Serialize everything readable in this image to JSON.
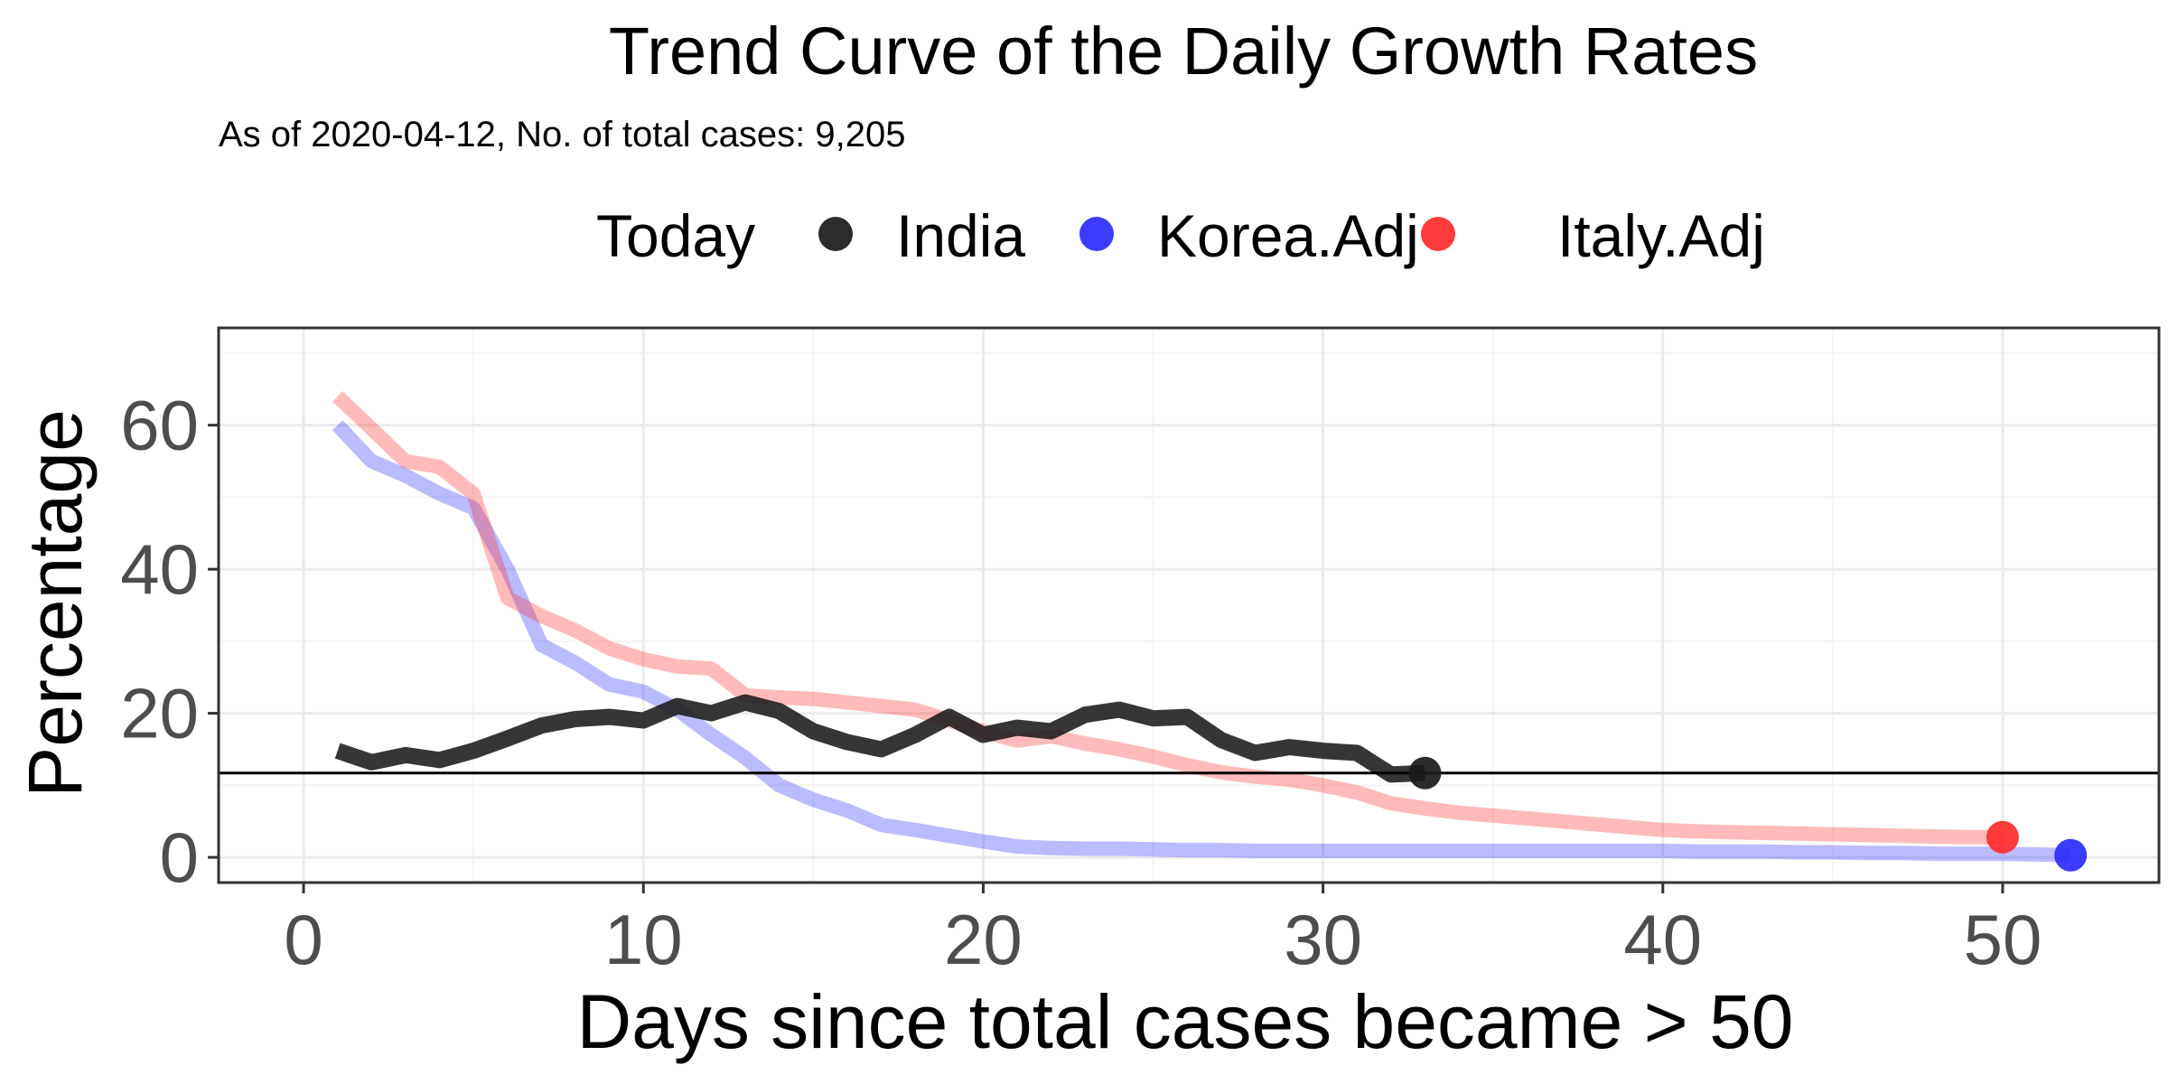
{
  "chart_data": {
    "type": "line",
    "title": "Trend Curve of the Daily Growth Rates",
    "subtitle": "As of 2020-04-12, No. of total cases: 9,205",
    "xlabel": "Days since total cases became > 50",
    "ylabel": "Percentage",
    "xlim": [
      -2.5,
      54.6
    ],
    "ylim": [
      -3.5,
      73.5
    ],
    "x_ticks": [
      0,
      10,
      20,
      30,
      40,
      50
    ],
    "y_ticks": [
      0,
      20,
      40,
      60
    ],
    "grid": true,
    "legend": {
      "title": "Today",
      "position": "top",
      "entries": [
        "India",
        "Korea.Adj",
        "Italy.Adj"
      ]
    },
    "reference_line": {
      "y": 11.7,
      "color": "#000000"
    },
    "series": [
      {
        "name": "Korea.Adj",
        "color": "#2b2bff",
        "x": [
          1,
          2,
          3,
          4,
          5,
          6,
          7,
          8,
          9,
          10,
          11,
          12,
          13,
          14,
          15,
          16,
          17,
          18,
          19,
          20,
          21,
          22,
          23,
          24,
          25,
          26,
          27,
          28,
          29,
          30,
          31,
          32,
          33,
          34,
          35,
          36,
          37,
          38,
          39,
          40,
          41,
          42,
          43,
          44,
          45,
          46,
          47,
          48,
          49,
          50,
          51,
          52
        ],
        "y": [
          60.0,
          55.0,
          53.0,
          50.5,
          48.5,
          40.0,
          29.5,
          27.0,
          24.0,
          23.0,
          20.5,
          17.0,
          13.8,
          10.0,
          8.0,
          6.5,
          4.5,
          3.8,
          3.0,
          2.2,
          1.5,
          1.3,
          1.2,
          1.2,
          1.1,
          1.0,
          1.0,
          0.9,
          0.9,
          0.9,
          0.9,
          0.9,
          0.9,
          0.9,
          0.9,
          0.9,
          0.9,
          0.9,
          0.9,
          0.9,
          0.8,
          0.8,
          0.8,
          0.7,
          0.7,
          0.6,
          0.6,
          0.5,
          0.5,
          0.5,
          0.4,
          0.3
        ],
        "today": {
          "x": 52,
          "y": 0.3
        }
      },
      {
        "name": "Italy.Adj",
        "color": "#ff2b2b",
        "x": [
          1,
          2,
          3,
          4,
          5,
          6,
          7,
          8,
          9,
          10,
          11,
          12,
          13,
          14,
          15,
          16,
          17,
          18,
          19,
          20,
          21,
          22,
          23,
          24,
          25,
          26,
          27,
          28,
          29,
          30,
          31,
          32,
          33,
          34,
          35,
          36,
          37,
          38,
          39,
          40,
          41,
          42,
          43,
          44,
          45,
          46,
          47,
          48,
          49,
          50
        ],
        "y": [
          64.0,
          59.5,
          55.0,
          54.2,
          50.5,
          36.0,
          33.5,
          31.5,
          29.0,
          27.5,
          26.5,
          26.2,
          22.5,
          22.2,
          22.0,
          21.5,
          21.0,
          20.5,
          19.0,
          17.5,
          16.2,
          16.8,
          15.8,
          15.0,
          14.0,
          12.8,
          11.8,
          11.2,
          10.8,
          10.0,
          9.0,
          7.5,
          6.8,
          6.2,
          5.8,
          5.4,
          5.0,
          4.6,
          4.2,
          3.8,
          3.6,
          3.5,
          3.4,
          3.3,
          3.2,
          3.1,
          3.0,
          2.9,
          2.8,
          2.8
        ],
        "today": {
          "x": 50,
          "y": 2.8
        }
      },
      {
        "name": "India",
        "color": "#1a1a1a",
        "x": [
          1,
          2,
          3,
          4,
          5,
          6,
          7,
          8,
          9,
          10,
          11,
          12,
          13,
          14,
          15,
          16,
          17,
          18,
          19,
          20,
          21,
          22,
          23,
          24,
          25,
          26,
          27,
          28,
          29,
          30,
          31,
          32,
          33
        ],
        "y": [
          14.8,
          13.2,
          14.2,
          13.5,
          14.8,
          16.5,
          18.3,
          19.2,
          19.5,
          19.0,
          21.0,
          20.0,
          21.5,
          20.3,
          17.5,
          16.0,
          15.0,
          17.0,
          19.5,
          17.0,
          18.0,
          17.5,
          19.8,
          20.5,
          19.3,
          19.5,
          16.3,
          14.5,
          15.3,
          14.8,
          14.5,
          11.5,
          11.7
        ],
        "today": {
          "x": 33,
          "y": 11.7
        }
      }
    ]
  }
}
